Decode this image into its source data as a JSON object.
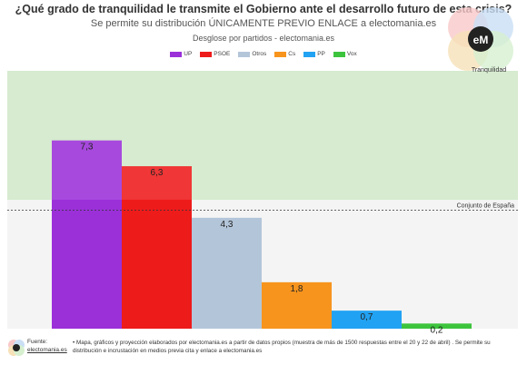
{
  "header": {
    "title": "¿Qué grado de tranquilidad le transmite el Gobierno ante el desarrollo futuro de esta crisis?",
    "subtitle": "Se permite su distribución ÚNICAMENTE PREVIO ENLACE a electomania.es",
    "breakdown": "Desglose por partidos - electomania.es"
  },
  "logo": {
    "text": "eM",
    "label": "Tranquilidad"
  },
  "footer": {
    "source_label": "Fuente:",
    "source_link": "electomania.es",
    "note": "• Mapa, gráficos y proyección elaborados por electomania.es a partir de datos propios (muestra de más de 1500 respuestas entre el 20 y 22 de abril) . Se permite su distribución e incrustación en medios previa cita y enlace a electomania.es"
  },
  "colors": {
    "UP": "#9b30d9",
    "PSOE": "#ee1b1b",
    "Otros": "#b3c5d9",
    "Cs": "#f7941d",
    "PP": "#22a2f2",
    "Vox": "#3dc43d",
    "band_high": "#d6ebcf",
    "band_low": "#f4f4f4"
  },
  "chart_data": {
    "type": "bar",
    "categories": [
      "UP",
      "PSOE",
      "Otros",
      "Cs",
      "PP",
      "Vox"
    ],
    "values": [
      7.3,
      6.3,
      4.3,
      1.8,
      0.7,
      0.2
    ],
    "value_labels": [
      "7,3",
      "6,3",
      "4,3",
      "1,8",
      "0,7",
      "0,2"
    ],
    "ylim": [
      0,
      10
    ],
    "reference": {
      "label": "Conjunto de España",
      "value": 4.6
    },
    "band_threshold": 5,
    "legend_position": "top-center",
    "grid": false
  }
}
